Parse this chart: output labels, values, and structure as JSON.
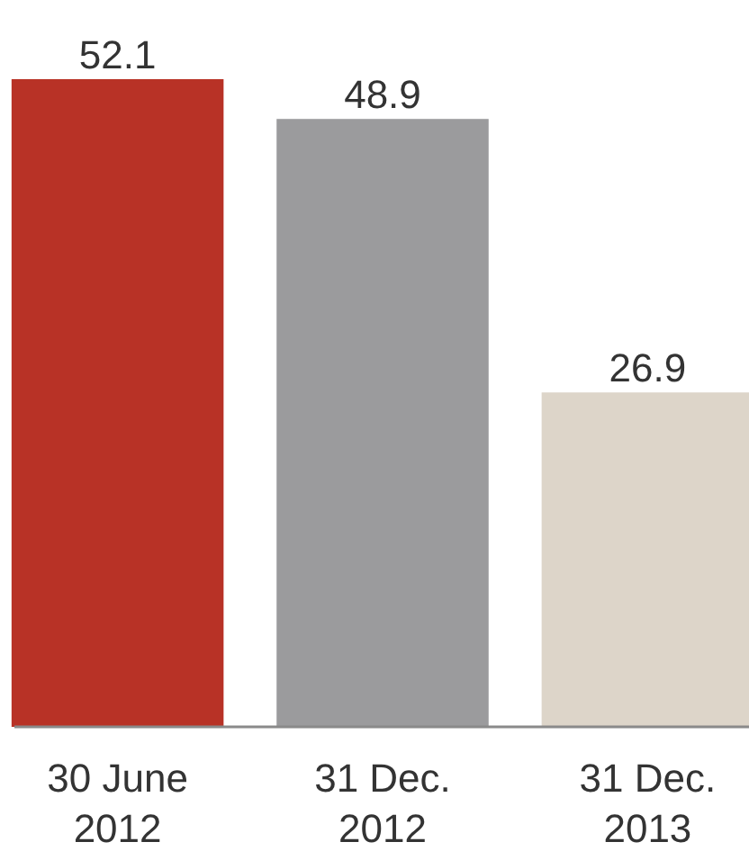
{
  "chart_data": {
    "type": "bar",
    "categories": [
      "30 June 2012",
      "31 Dec. 2012",
      "31 Dec. 2013"
    ],
    "values": [
      52.1,
      48.9,
      26.9
    ],
    "colors": [
      "#b83226",
      "#9b9b9d",
      "#ddd5c9"
    ],
    "data_labels": true
  }
}
